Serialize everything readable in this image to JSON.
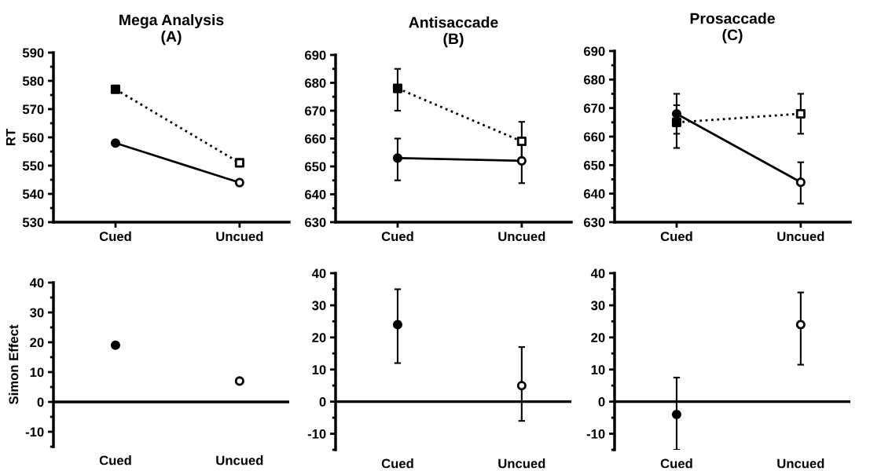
{
  "chart_data": [
    {
      "type": "line",
      "title": "Mega Analysis\n(A)",
      "ylabel": "RT",
      "categories": [
        "Cued",
        "Uncued"
      ],
      "ylim": [
        530,
        590
      ],
      "yticks": [
        530,
        540,
        550,
        560,
        570,
        580,
        590
      ],
      "series": [
        {
          "values": [
            558,
            544
          ],
          "marker": "circle",
          "line_style": "solid",
          "color": "#000000",
          "colors": [
            "#000000",
            "#ffffff"
          ]
        },
        {
          "values": [
            577,
            551
          ],
          "marker": "square",
          "line_style": "dotted",
          "color": "#000000",
          "colors": [
            "#000000",
            "#ffffff"
          ]
        }
      ]
    },
    {
      "type": "line",
      "title": "Antisaccade\n(B)",
      "categories": [
        "Cued",
        "Uncued"
      ],
      "ylim": [
        630,
        690
      ],
      "yticks": [
        630,
        640,
        650,
        660,
        670,
        680,
        690
      ],
      "series": [
        {
          "values": [
            653,
            652
          ],
          "errors": [
            [
              645,
              660
            ],
            [
              644,
              660
            ]
          ],
          "marker": "circle",
          "line_style": "solid",
          "color": "#000000",
          "colors": [
            "#000000",
            "#ffffff"
          ]
        },
        {
          "values": [
            678,
            659
          ],
          "errors": [
            [
              670,
              685
            ],
            [
              652,
              666
            ]
          ],
          "marker": "square",
          "line_style": "dotted",
          "color": "#000000",
          "colors": [
            "#000000",
            "#ffffff"
          ]
        }
      ]
    },
    {
      "type": "line",
      "title": "Prosaccade\n(C)",
      "categories": [
        "Cued",
        "Uncued"
      ],
      "ylim": [
        630,
        690
      ],
      "yticks": [
        630,
        640,
        650,
        660,
        670,
        680,
        690
      ],
      "series": [
        {
          "values": [
            668,
            644
          ],
          "errors": [
            [
              661,
              675
            ],
            [
              636.5,
              651
            ]
          ],
          "marker": "circle",
          "line_style": "solid",
          "color": "#000000",
          "colors": [
            "#000000",
            "#ffffff"
          ]
        },
        {
          "values": [
            665,
            668
          ],
          "errors": [
            [
              656,
              671
            ],
            [
              661,
              675
            ]
          ],
          "marker": "square",
          "line_style": "dotted",
          "color": "#000000",
          "colors": [
            "#000000",
            "#ffffff"
          ]
        }
      ]
    },
    {
      "type": "scatter",
      "ylabel": "Simon Effect",
      "categories": [
        "Cued",
        "Uncued"
      ],
      "ylim": [
        -15,
        40
      ],
      "yticks": [
        -10,
        0,
        10,
        20,
        30,
        40
      ],
      "marker": "circle",
      "color": "#000000",
      "colors": [
        "#000000",
        "#ffffff"
      ],
      "values": [
        19,
        7
      ],
      "ref_lines": [
        {
          "axis": "y",
          "value": 0,
          "color": "#000000"
        }
      ]
    },
    {
      "type": "scatter",
      "categories": [
        "Cued",
        "Uncued"
      ],
      "ylim": [
        -15,
        40
      ],
      "yticks": [
        -10,
        0,
        10,
        20,
        30,
        40
      ],
      "marker": "circle",
      "color": "#000000",
      "colors": [
        "#000000",
        "#ffffff"
      ],
      "values": [
        24,
        5
      ],
      "errors": [
        [
          12,
          35
        ],
        [
          -6,
          17
        ]
      ],
      "ref_lines": [
        {
          "axis": "y",
          "value": 0,
          "color": "#000000"
        }
      ]
    },
    {
      "type": "scatter",
      "categories": [
        "Cued",
        "Uncued"
      ],
      "ylim": [
        -15,
        40
      ],
      "yticks": [
        -10,
        0,
        10,
        20,
        30,
        40
      ],
      "marker": "circle",
      "color": "#000000",
      "colors": [
        "#000000",
        "#ffffff"
      ],
      "values": [
        -4,
        24
      ],
      "errors": [
        [
          -15,
          7.5
        ],
        [
          11.5,
          34
        ]
      ],
      "ref_lines": [
        {
          "axis": "y",
          "value": 0,
          "color": "#000000"
        }
      ]
    }
  ]
}
